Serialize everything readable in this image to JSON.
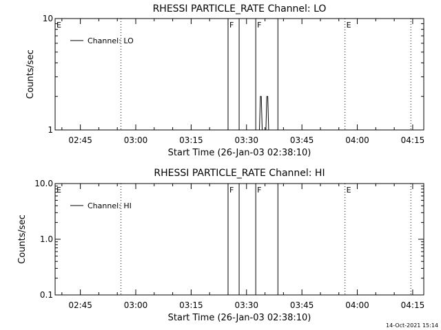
{
  "footer": {
    "date": "14-Oct-2021 15:14"
  },
  "chart_data": [
    {
      "type": "line",
      "title": "RHESSI PARTICLE_RATE Channel: LO",
      "xlabel": "Start Time (26-Jan-03 02:38:10)",
      "ylabel": "Counts/sec",
      "yscale": "log",
      "xlim": [
        "02:38:10",
        "04:18:00"
      ],
      "ylim": [
        1,
        10
      ],
      "ytick_labels": [
        "1",
        "10"
      ],
      "xtick_labels": [
        "02:45",
        "03:00",
        "03:15",
        "03:30",
        "03:45",
        "04:00",
        "04:15"
      ],
      "legend": {
        "position": "top-left",
        "entries": [
          "Channel: LO"
        ]
      },
      "series": [
        {
          "name": "Channel: LO",
          "x": [
            "03:33:05",
            "03:33:30",
            "03:33:45",
            "03:34:00",
            "03:34:15",
            "03:35:15",
            "03:35:30",
            "03:35:45",
            "03:36:00",
            "03:36:15"
          ],
          "values": [
            1,
            1,
            2,
            2,
            1,
            1,
            2,
            2,
            1,
            1
          ]
        }
      ],
      "markers": [
        {
          "label": "E",
          "time": "02:38:10",
          "style": "none"
        },
        {
          "label": "",
          "time": "02:56:00",
          "style": "dotted"
        },
        {
          "label": "F",
          "time": "03:25:00",
          "style": "solid"
        },
        {
          "label": "",
          "time": "03:28:00",
          "style": "solid"
        },
        {
          "label": "F",
          "time": "03:32:30",
          "style": "solid"
        },
        {
          "label": "",
          "time": "03:38:30",
          "style": "solid"
        },
        {
          "label": "E",
          "time": "03:56:40",
          "style": "dotted"
        },
        {
          "label": "",
          "time": "04:14:30",
          "style": "dotted"
        }
      ]
    },
    {
      "type": "line",
      "title": "RHESSI PARTICLE_RATE Channel: HI",
      "xlabel": "Start Time (26-Jan-03 02:38:10)",
      "ylabel": "Counts/sec",
      "yscale": "log",
      "xlim": [
        "02:38:10",
        "04:18:00"
      ],
      "ylim": [
        0.1,
        10
      ],
      "ytick_labels": [
        "0.1",
        "1.0",
        "10.0"
      ],
      "xtick_labels": [
        "02:45",
        "03:00",
        "03:15",
        "03:30",
        "03:45",
        "04:00",
        "04:15"
      ],
      "legend": {
        "position": "top-left",
        "entries": [
          "Channel: HI"
        ]
      },
      "series": [
        {
          "name": "Channel: HI",
          "x": [],
          "values": []
        }
      ],
      "markers": [
        {
          "label": "E",
          "time": "02:38:10",
          "style": "none"
        },
        {
          "label": "",
          "time": "02:56:00",
          "style": "dotted"
        },
        {
          "label": "F",
          "time": "03:25:00",
          "style": "solid"
        },
        {
          "label": "",
          "time": "03:28:00",
          "style": "solid"
        },
        {
          "label": "F",
          "time": "03:32:30",
          "style": "solid"
        },
        {
          "label": "",
          "time": "03:38:30",
          "style": "solid"
        },
        {
          "label": "E",
          "time": "03:56:40",
          "style": "dotted"
        },
        {
          "label": "",
          "time": "04:14:30",
          "style": "dotted"
        }
      ]
    }
  ]
}
